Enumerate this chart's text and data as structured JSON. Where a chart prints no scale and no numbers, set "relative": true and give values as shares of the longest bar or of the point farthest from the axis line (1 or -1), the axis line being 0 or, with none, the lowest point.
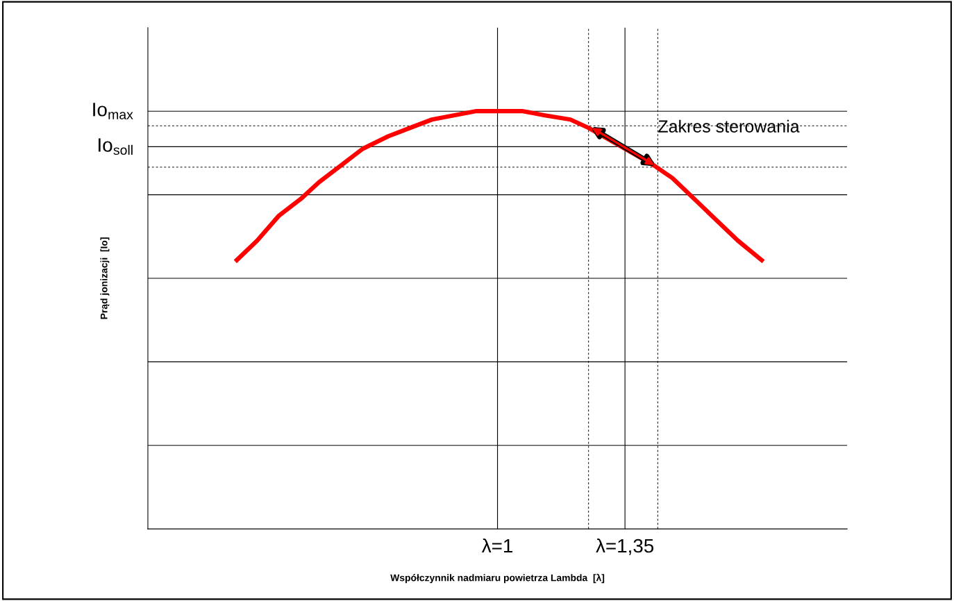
{
  "chart_data": {
    "type": "line",
    "relative": true,
    "xlabel": "Współczynnik nadmiaru powietrza Lambda  [λ]",
    "ylabel": "Prąd jonizacji  [Io]",
    "xlim": [
      0.04,
      1.96
    ],
    "xticks": [
      {
        "value": 1,
        "label": "λ=1"
      },
      {
        "value": 1.35,
        "label": "λ=1,35"
      }
    ],
    "ylim": [
      0,
      1.2
    ],
    "x": [
      0.28,
      0.34,
      0.4,
      0.46,
      0.51,
      0.57,
      0.63,
      0.7,
      0.76,
      0.82,
      0.88,
      0.94,
      1.0,
      1.07,
      1.13,
      1.2,
      1.25,
      1.31,
      1.37,
      1.43,
      1.48,
      1.54,
      1.6,
      1.66,
      1.73
    ],
    "series": [
      {
        "color": "#ff0000",
        "values": [
          0.64,
          0.69,
          0.75,
          0.79,
          0.83,
          0.87,
          0.91,
          0.94,
          0.96,
          0.98,
          0.99,
          1.0,
          1.0,
          1.0,
          0.99,
          0.98,
          0.96,
          0.93,
          0.9,
          0.87,
          0.84,
          0.79,
          0.74,
          0.69,
          0.64
        ]
      }
    ],
    "ref_lines": [
      {
        "axis": "y",
        "value": 1.0,
        "label": "Io$_{max}$",
        "color": "#000000",
        "line_style": "solid"
      },
      {
        "axis": "y",
        "value": 0.915,
        "label": "Io$_{soll}$",
        "color": "#000000",
        "line_style": "solid"
      },
      {
        "axis": "y",
        "value": 0.8,
        "color": "#000000",
        "line_style": "solid"
      },
      {
        "axis": "y",
        "value": 0.6,
        "color": "#000000",
        "line_style": "solid"
      },
      {
        "axis": "y",
        "value": 0.4,
        "color": "#000000",
        "line_style": "solid"
      },
      {
        "axis": "y",
        "value": 0.2,
        "color": "#000000",
        "line_style": "solid"
      },
      {
        "axis": "y",
        "value": 0.965,
        "color": "#000000",
        "line_style": "dashed"
      },
      {
        "axis": "y",
        "value": 0.866,
        "color": "#000000",
        "line_style": "dashed"
      },
      {
        "axis": "x",
        "value": 1,
        "color": "#000000",
        "line_style": "solid"
      },
      {
        "axis": "x",
        "value": 1.35,
        "color": "#000000",
        "line_style": "solid"
      },
      {
        "axis": "x",
        "value": 1.25,
        "color": "#000000",
        "line_style": "dashed"
      },
      {
        "axis": "x",
        "value": 1.44,
        "color": "#000000",
        "line_style": "dashed"
      }
    ],
    "annotations": [
      {
        "text": "Zakres sterowania",
        "x": 1.44,
        "y": 0.96
      }
    ],
    "grid": false,
    "legend": false
  }
}
